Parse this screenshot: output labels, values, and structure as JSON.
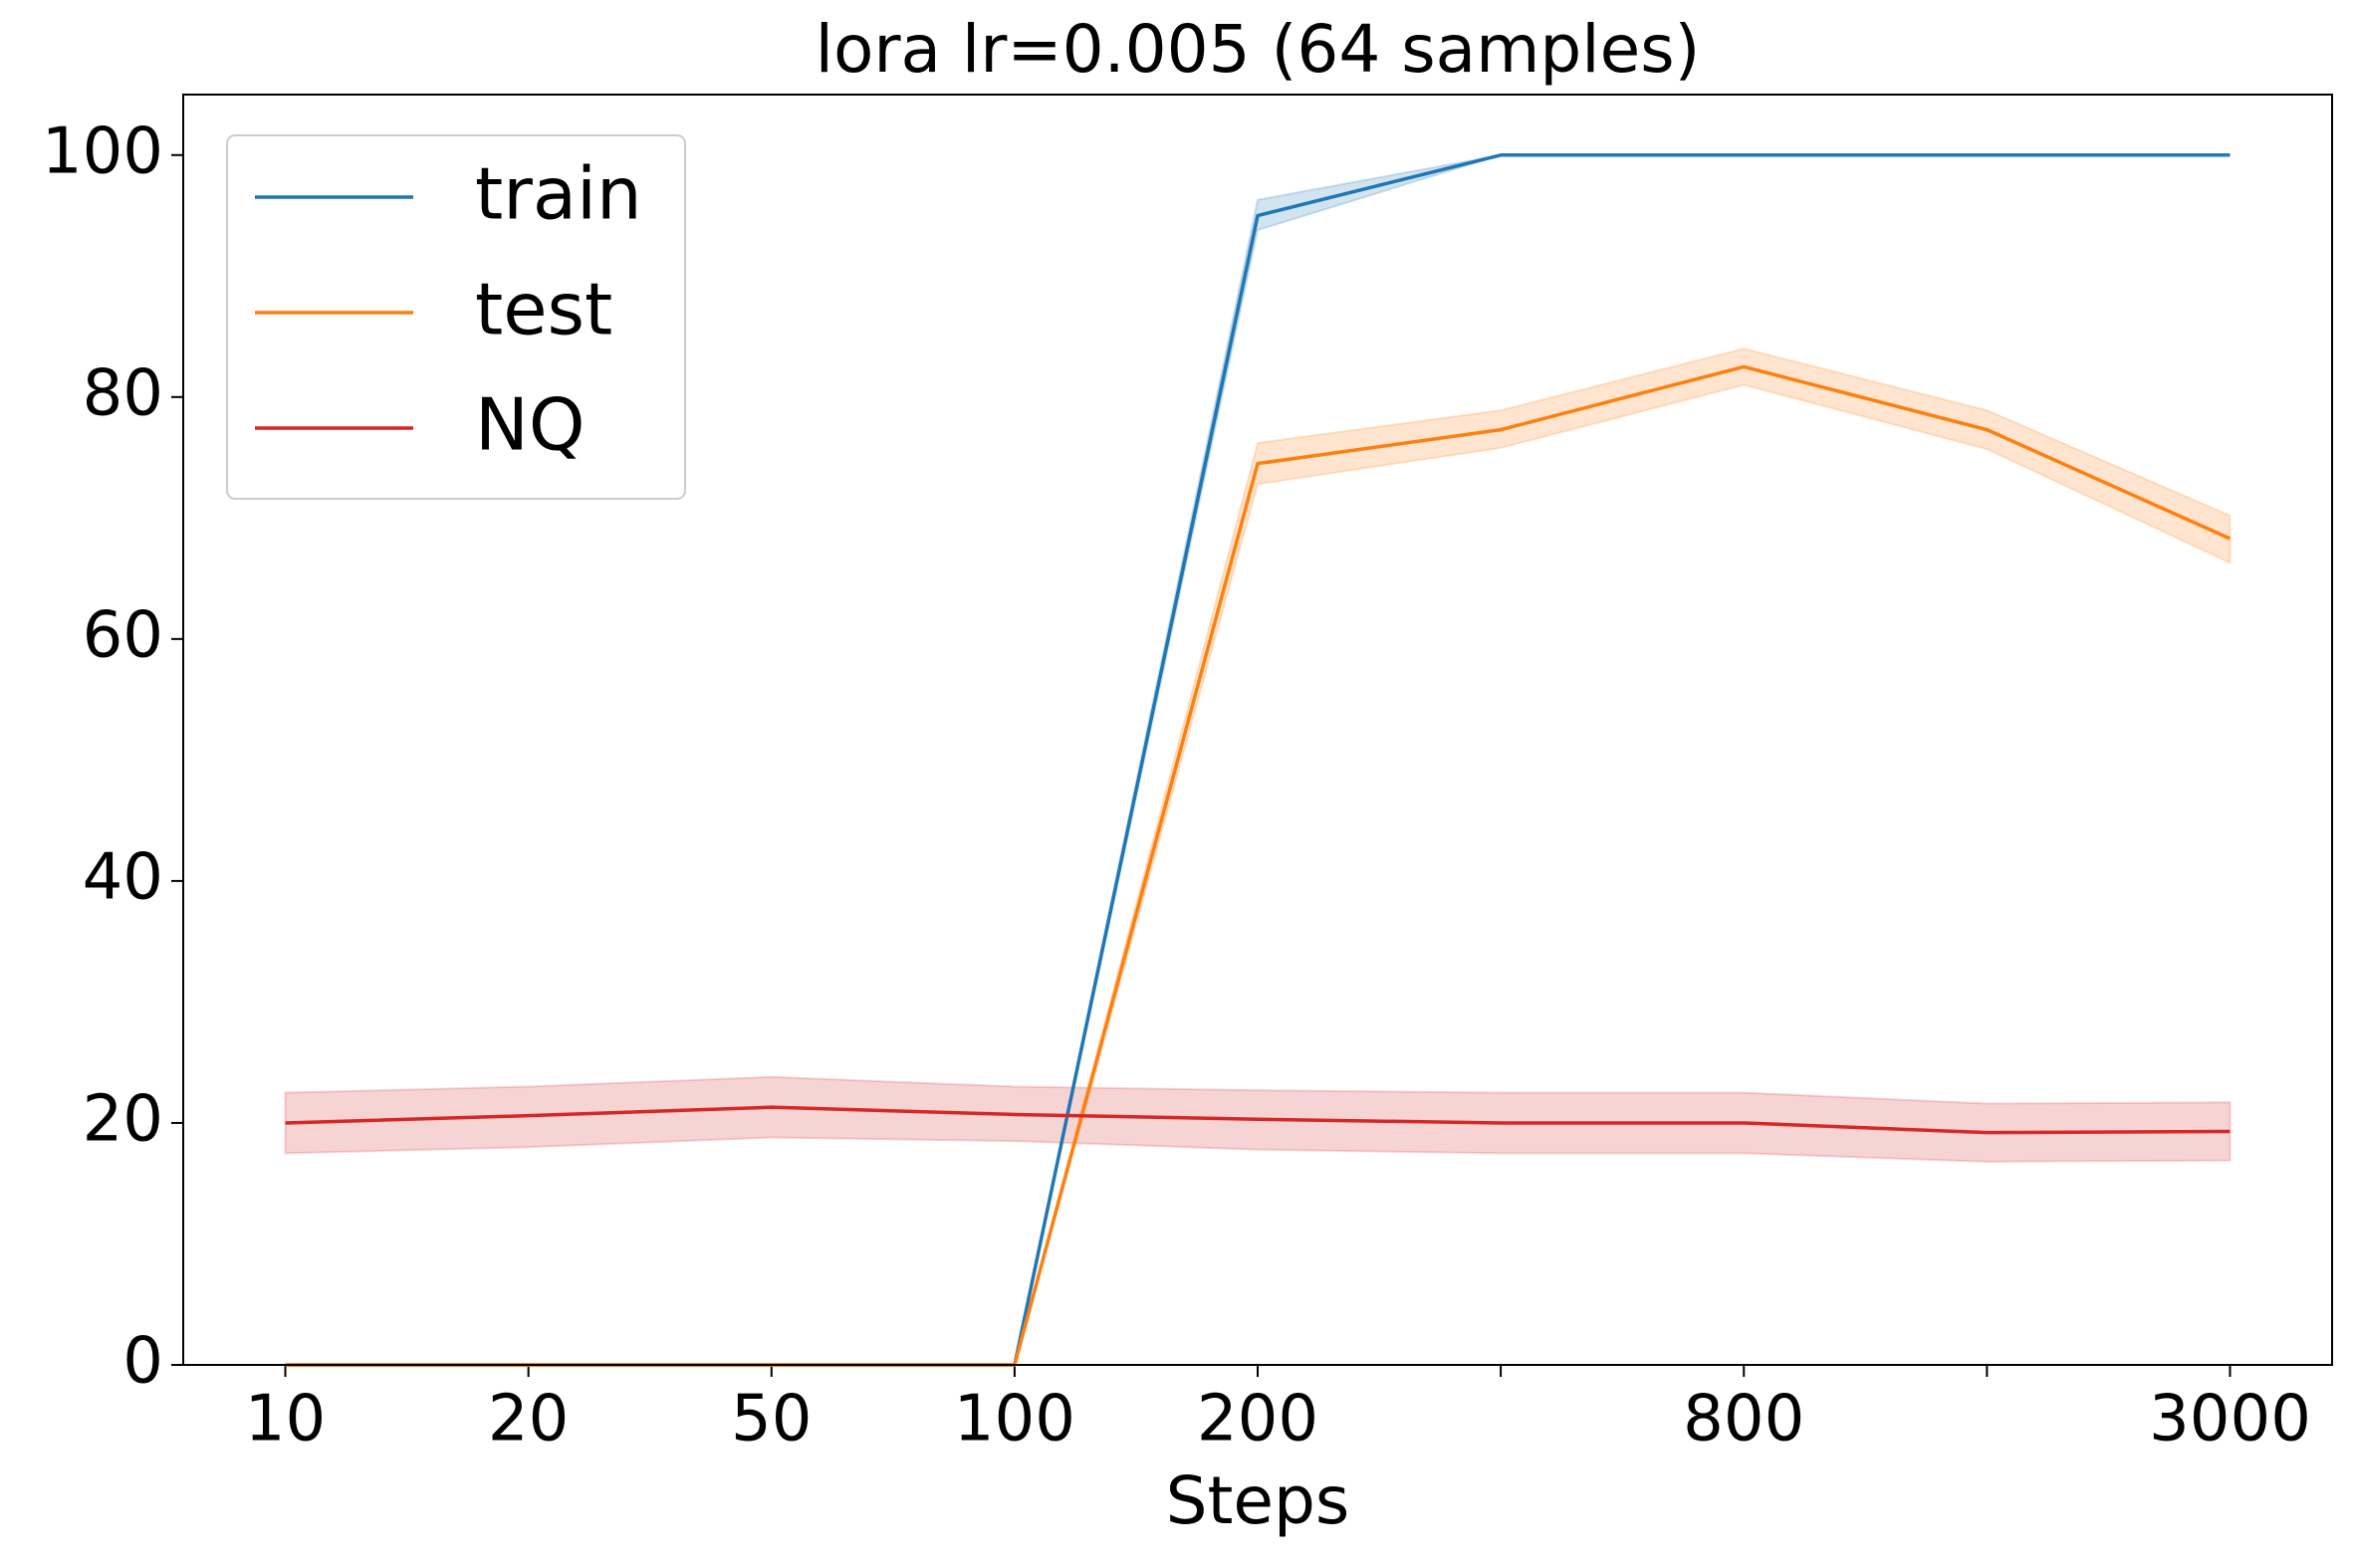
{
  "chart_data": {
    "type": "line",
    "title": "lora lr=0.005  (64 samples)",
    "x_label": "Steps",
    "categories": [
      "10",
      "20",
      "50",
      "100",
      "200",
      null,
      "800",
      null,
      "3000"
    ],
    "ylim": [
      0,
      105
    ],
    "yticks": [
      0,
      20,
      40,
      60,
      80,
      100
    ],
    "grid": false,
    "legend": "upper left",
    "series": [
      {
        "name": "train",
        "color": "#1f77b4",
        "values": [
          0,
          0,
          0,
          0,
          95,
          100,
          100,
          100,
          100
        ],
        "lower": [
          0,
          0,
          0,
          0,
          93.8,
          100,
          100,
          100,
          100
        ],
        "upper": [
          0,
          0,
          0,
          0,
          96.3,
          100,
          100,
          100,
          100
        ]
      },
      {
        "name": "test",
        "color": "#ff7f0e",
        "values": [
          0,
          0,
          0,
          0,
          74.5,
          77.3,
          82.5,
          77.3,
          68.3
        ],
        "lower": [
          0,
          0,
          0,
          0,
          72.8,
          75.8,
          81,
          75.7,
          66.3
        ],
        "upper": [
          0,
          0,
          0,
          0,
          76.2,
          78.9,
          84,
          78.9,
          70.2
        ]
      },
      {
        "name": "NQ",
        "color": "#d62728",
        "values": [
          20,
          20.6,
          21.3,
          20.7,
          20.3,
          20,
          20,
          19.2,
          19.3
        ],
        "lower": [
          17.5,
          18,
          18.8,
          18.5,
          17.8,
          17.5,
          17.5,
          16.8,
          16.9
        ],
        "upper": [
          22.5,
          23,
          23.8,
          23,
          22.7,
          22.5,
          22.5,
          21.6,
          21.7
        ]
      }
    ]
  }
}
